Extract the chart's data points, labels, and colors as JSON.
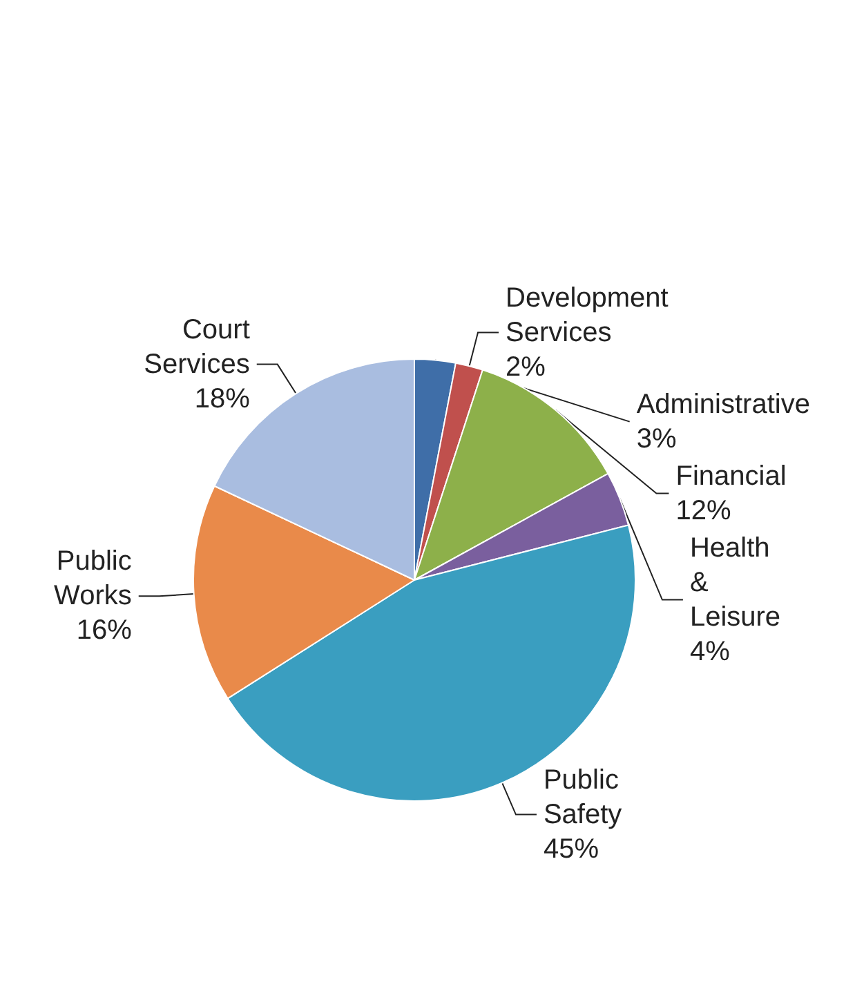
{
  "chart_data": {
    "type": "pie",
    "categories": [
      "Administrative",
      "Development Services",
      "Financial",
      "Health & Leisure",
      "Public Safety",
      "Public Works",
      "Court Services"
    ],
    "values": [
      3,
      2,
      12,
      4,
      45,
      16,
      18
    ],
    "colors": [
      "#3f6ea8",
      "#c0504d",
      "#8db04a",
      "#7a5f9e",
      "#3a9ec0",
      "#e98a4a",
      "#a9bde0"
    ],
    "value_labels": [
      "3%",
      "2%",
      "12%",
      "4%",
      "45%",
      "16%",
      "18%"
    ],
    "legend": false
  }
}
